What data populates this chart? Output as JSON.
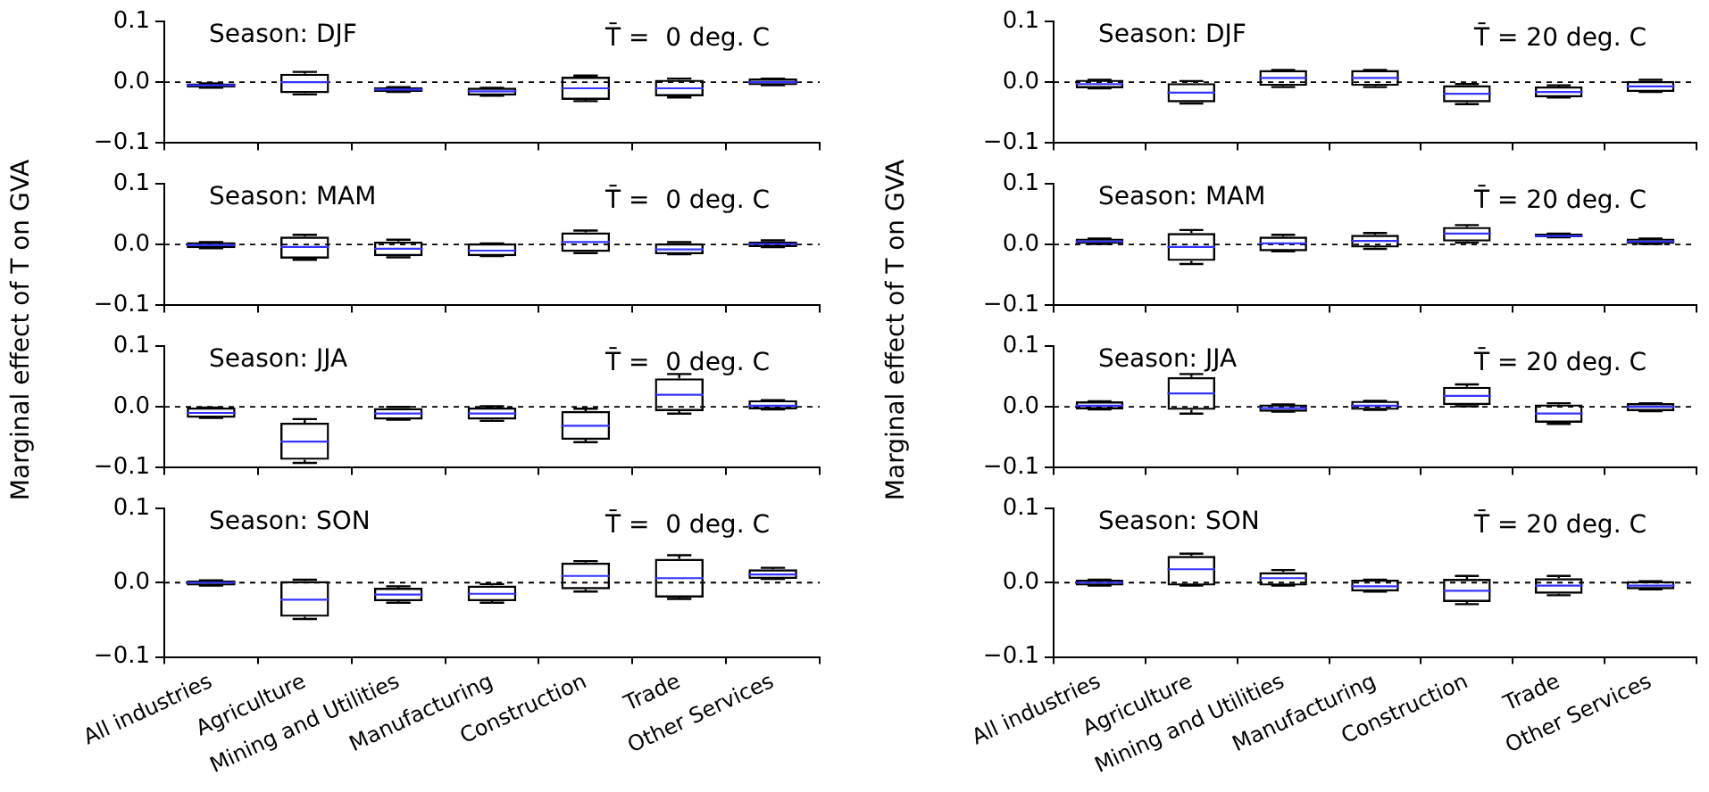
{
  "chart_data": [
    {
      "type": "box",
      "ylabel": "Marginal effect of T on GVA",
      "tick_labels": "y",
      "categories": [
        null,
        null,
        null,
        null,
        null,
        null,
        null
      ],
      "ylim": [
        -0.1,
        0.1
      ],
      "yticks": [
        {
          "value": -0.1,
          "label": "−0.1"
        },
        {
          "value": 0,
          "label": "0.0"
        },
        {
          "value": 0.1,
          "label": "0.1"
        }
      ],
      "ref_lines": [
        {
          "axis": "y",
          "value": 0,
          "line_style": "dashed",
          "color": "#000000"
        }
      ],
      "annotations": [
        "Season: DJF",
        "T̄ =  0 deg. C"
      ],
      "boxes": [
        {
          "low": -0.009,
          "q1": -0.009,
          "median": -0.005,
          "q3": -0.002,
          "high": -0.002
        },
        {
          "low": -0.02,
          "q1": -0.018,
          "median": 0.0,
          "q3": 0.014,
          "high": 0.017
        },
        {
          "low": -0.016,
          "q1": -0.016,
          "median": -0.012,
          "q3": -0.008,
          "high": -0.008
        },
        {
          "low": -0.022,
          "q1": -0.022,
          "median": -0.015,
          "q3": -0.009,
          "high": -0.009
        },
        {
          "low": -0.031,
          "q1": -0.029,
          "median": -0.01,
          "q3": 0.009,
          "high": 0.011
        },
        {
          "low": -0.025,
          "q1": -0.023,
          "median": -0.01,
          "q3": 0.004,
          "high": 0.006
        },
        {
          "low": -0.005,
          "q1": -0.005,
          "median": 0.0,
          "q3": 0.006,
          "high": 0.006
        }
      ]
    },
    {
      "type": "box",
      "tick_labels": "y",
      "categories": [
        null,
        null,
        null,
        null,
        null,
        null,
        null
      ],
      "ylim": [
        -0.1,
        0.1
      ],
      "yticks": [
        {
          "value": -0.1,
          "label": "−0.1"
        },
        {
          "value": 0,
          "label": "0.0"
        },
        {
          "value": 0.1,
          "label": "0.1"
        }
      ],
      "ref_lines": [
        {
          "axis": "y",
          "value": 0,
          "line_style": "dashed",
          "color": "#000000"
        }
      ],
      "annotations": [
        "Season: MAM",
        "T̄ =  0 deg. C"
      ],
      "boxes": [
        {
          "low": -0.006,
          "q1": -0.006,
          "median": -0.001,
          "q3": 0.004,
          "high": 0.004
        },
        {
          "low": -0.025,
          "q1": -0.023,
          "median": -0.004,
          "q3": 0.013,
          "high": 0.016
        },
        {
          "low": -0.021,
          "q1": -0.019,
          "median": -0.007,
          "q3": 0.005,
          "high": 0.008
        },
        {
          "low": -0.019,
          "q1": -0.019,
          "median": -0.01,
          "q3": 0.002,
          "high": 0.002
        },
        {
          "low": -0.014,
          "q1": -0.012,
          "median": 0.004,
          "q3": 0.02,
          "high": 0.023
        },
        {
          "low": -0.016,
          "q1": -0.016,
          "median": -0.008,
          "q3": 0.002,
          "high": 0.004
        },
        {
          "low": -0.004,
          "q1": -0.004,
          "median": 0.001,
          "q3": 0.005,
          "high": 0.007
        }
      ]
    },
    {
      "type": "box",
      "tick_labels": "y",
      "categories": [
        null,
        null,
        null,
        null,
        null,
        null,
        null
      ],
      "ylim": [
        -0.1,
        0.1
      ],
      "yticks": [
        {
          "value": -0.1,
          "label": "−0.1"
        },
        {
          "value": 0,
          "label": "0.0"
        },
        {
          "value": 0.1,
          "label": "0.1"
        }
      ],
      "ref_lines": [
        {
          "axis": "y",
          "value": 0,
          "line_style": "dashed",
          "color": "#000000"
        }
      ],
      "annotations": [
        "Season: JJA",
        "T̄ =  0 deg. C"
      ],
      "boxes": [
        {
          "low": -0.018,
          "q1": -0.018,
          "median": -0.01,
          "q3": -0.001,
          "high": -0.001
        },
        {
          "low": -0.092,
          "q1": -0.087,
          "median": -0.057,
          "q3": -0.026,
          "high": -0.02
        },
        {
          "low": -0.021,
          "q1": -0.021,
          "median": -0.011,
          "q3": -0.002,
          "high": 0.0
        },
        {
          "low": -0.023,
          "q1": -0.021,
          "median": -0.011,
          "q3": -0.001,
          "high": 0.001
        },
        {
          "low": -0.058,
          "q1": -0.054,
          "median": -0.031,
          "q3": -0.007,
          "high": -0.003
        },
        {
          "low": -0.011,
          "q1": -0.007,
          "median": 0.02,
          "q3": 0.047,
          "high": 0.054
        },
        {
          "low": -0.004,
          "q1": -0.004,
          "median": 0.002,
          "q3": 0.011,
          "high": 0.011
        }
      ]
    },
    {
      "type": "box",
      "categories": [
        "All industries",
        "Agriculture",
        "Mining and Utilities",
        "Manufacturing",
        "Construction",
        "Trade",
        "Other Services"
      ],
      "ylim": [
        -0.1,
        0.1
      ],
      "yticks": [
        {
          "value": -0.1,
          "label": "−0.1"
        },
        {
          "value": 0,
          "label": "0.0"
        },
        {
          "value": 0.1,
          "label": "0.1"
        }
      ],
      "ref_lines": [
        {
          "axis": "y",
          "value": 0,
          "line_style": "dashed",
          "color": "#000000"
        }
      ],
      "annotations": [
        "Season: SON",
        "T̄ =  0 deg. C"
      ],
      "boxes": [
        {
          "low": -0.004,
          "q1": -0.004,
          "median": 0.0,
          "q3": 0.003,
          "high": 0.003
        },
        {
          "low": -0.049,
          "q1": -0.046,
          "median": -0.023,
          "q3": 0.002,
          "high": 0.004
        },
        {
          "low": -0.027,
          "q1": -0.025,
          "median": -0.016,
          "q3": -0.007,
          "high": -0.005
        },
        {
          "low": -0.027,
          "q1": -0.025,
          "median": -0.015,
          "q3": -0.004,
          "high": -0.002
        },
        {
          "low": -0.012,
          "q1": -0.009,
          "median": 0.009,
          "q3": 0.027,
          "high": 0.029
        },
        {
          "low": -0.022,
          "q1": -0.02,
          "median": 0.006,
          "q3": 0.032,
          "high": 0.037
        },
        {
          "low": 0.005,
          "q1": 0.005,
          "median": 0.011,
          "q3": 0.018,
          "high": 0.02
        }
      ]
    },
    {
      "type": "box",
      "ylabel": "Marginal effect of T on GVA",
      "tick_labels": "y",
      "categories": [
        null,
        null,
        null,
        null,
        null,
        null,
        null
      ],
      "ylim": [
        -0.1,
        0.1
      ],
      "yticks": [
        {
          "value": -0.1,
          "label": "−0.1"
        },
        {
          "value": 0,
          "label": "0.0"
        },
        {
          "value": 0.1,
          "label": "0.1"
        }
      ],
      "ref_lines": [
        {
          "axis": "y",
          "value": 0,
          "line_style": "dashed",
          "color": "#000000"
        }
      ],
      "annotations": [
        "Season: DJF",
        "T̄ = 20 deg. C"
      ],
      "boxes": [
        {
          "low": -0.01,
          "q1": -0.01,
          "median": -0.003,
          "q3": 0.004,
          "high": 0.004
        },
        {
          "low": -0.035,
          "q1": -0.033,
          "median": -0.017,
          "q3": 0.0,
          "high": 0.002
        },
        {
          "low": -0.008,
          "q1": -0.006,
          "median": 0.007,
          "q3": 0.02,
          "high": 0.02
        },
        {
          "low": -0.008,
          "q1": -0.006,
          "median": 0.007,
          "q3": 0.02,
          "high": 0.02
        },
        {
          "low": -0.036,
          "q1": -0.033,
          "median": -0.019,
          "q3": -0.005,
          "high": -0.003
        },
        {
          "low": -0.025,
          "q1": -0.025,
          "median": -0.016,
          "q3": -0.007,
          "high": -0.005
        },
        {
          "low": -0.016,
          "q1": -0.016,
          "median": -0.007,
          "q3": 0.002,
          "high": 0.004
        }
      ]
    },
    {
      "type": "box",
      "tick_labels": "y",
      "categories": [
        null,
        null,
        null,
        null,
        null,
        null,
        null
      ],
      "ylim": [
        -0.1,
        0.1
      ],
      "yticks": [
        {
          "value": -0.1,
          "label": "−0.1"
        },
        {
          "value": 0,
          "label": "0.0"
        },
        {
          "value": 0.1,
          "label": "0.1"
        }
      ],
      "ref_lines": [
        {
          "axis": "y",
          "value": 0,
          "line_style": "dashed",
          "color": "#000000"
        }
      ],
      "annotations": [
        "Season: MAM",
        "T̄ = 20 deg. C"
      ],
      "boxes": [
        {
          "low": 0.001,
          "q1": 0.001,
          "median": 0.005,
          "q3": 0.01,
          "high": 0.01
        },
        {
          "low": -0.032,
          "q1": -0.027,
          "median": -0.004,
          "q3": 0.019,
          "high": 0.024
        },
        {
          "low": -0.011,
          "q1": -0.011,
          "median": 0.002,
          "q3": 0.013,
          "high": 0.016
        },
        {
          "low": -0.007,
          "q1": -0.005,
          "median": 0.006,
          "q3": 0.016,
          "high": 0.019
        },
        {
          "low": 0.003,
          "q1": 0.005,
          "median": 0.018,
          "q3": 0.029,
          "high": 0.032
        },
        {
          "low": 0.012,
          "q1": 0.012,
          "median": 0.014,
          "q3": 0.018,
          "high": 0.018
        },
        {
          "low": 0.001,
          "q1": 0.001,
          "median": 0.005,
          "q3": 0.01,
          "high": 0.01
        }
      ]
    },
    {
      "type": "box",
      "tick_labels": "y",
      "categories": [
        null,
        null,
        null,
        null,
        null,
        null,
        null
      ],
      "ylim": [
        -0.1,
        0.1
      ],
      "yticks": [
        {
          "value": -0.1,
          "label": "−0.1"
        },
        {
          "value": 0,
          "label": "0.0"
        },
        {
          "value": 0.1,
          "label": "0.1"
        }
      ],
      "ref_lines": [
        {
          "axis": "y",
          "value": 0,
          "line_style": "dashed",
          "color": "#000000"
        }
      ],
      "annotations": [
        "Season: JJA",
        "T̄ = 20 deg. C"
      ],
      "boxes": [
        {
          "low": -0.004,
          "q1": -0.004,
          "median": 0.002,
          "q3": 0.009,
          "high": 0.009
        },
        {
          "low": -0.011,
          "q1": -0.005,
          "median": 0.022,
          "q3": 0.049,
          "high": 0.054
        },
        {
          "low": -0.008,
          "q1": -0.008,
          "median": -0.002,
          "q3": 0.004,
          "high": 0.004
        },
        {
          "low": -0.005,
          "q1": -0.005,
          "median": 0.002,
          "q3": 0.01,
          "high": 0.01
        },
        {
          "low": 0.001,
          "q1": 0.003,
          "median": 0.018,
          "q3": 0.033,
          "high": 0.037
        },
        {
          "low": -0.028,
          "q1": -0.026,
          "median": -0.011,
          "q3": 0.004,
          "high": 0.006
        },
        {
          "low": -0.007,
          "q1": -0.007,
          "median": 0.0,
          "q3": 0.006,
          "high": 0.006
        }
      ]
    },
    {
      "type": "box",
      "categories": [
        "All industries",
        "Agriculture",
        "Mining and Utilities",
        "Manufacturing",
        "Construction",
        "Trade",
        "Other Services"
      ],
      "ylim": [
        -0.1,
        0.1
      ],
      "yticks": [
        {
          "value": -0.1,
          "label": "−0.1"
        },
        {
          "value": 0,
          "label": "0.0"
        },
        {
          "value": 0.1,
          "label": "0.1"
        }
      ],
      "ref_lines": [
        {
          "axis": "y",
          "value": 0,
          "line_style": "dashed",
          "color": "#000000"
        }
      ],
      "annotations": [
        "Season: SON",
        "T̄ = 20 deg. C"
      ],
      "boxes": [
        {
          "low": -0.004,
          "q1": -0.004,
          "median": 0.0,
          "q3": 0.004,
          "high": 0.004
        },
        {
          "low": -0.004,
          "q1": -0.004,
          "median": 0.018,
          "q3": 0.036,
          "high": 0.039
        },
        {
          "low": -0.004,
          "q1": -0.004,
          "median": 0.006,
          "q3": 0.014,
          "high": 0.017
        },
        {
          "low": -0.012,
          "q1": -0.012,
          "median": -0.005,
          "q3": 0.004,
          "high": 0.004
        },
        {
          "low": -0.029,
          "q1": -0.026,
          "median": -0.011,
          "q3": 0.005,
          "high": 0.009
        },
        {
          "low": -0.017,
          "q1": -0.015,
          "median": -0.004,
          "q3": 0.006,
          "high": 0.009
        },
        {
          "low": -0.009,
          "q1": -0.009,
          "median": -0.004,
          "q3": 0.002,
          "high": 0.002
        }
      ]
    }
  ]
}
